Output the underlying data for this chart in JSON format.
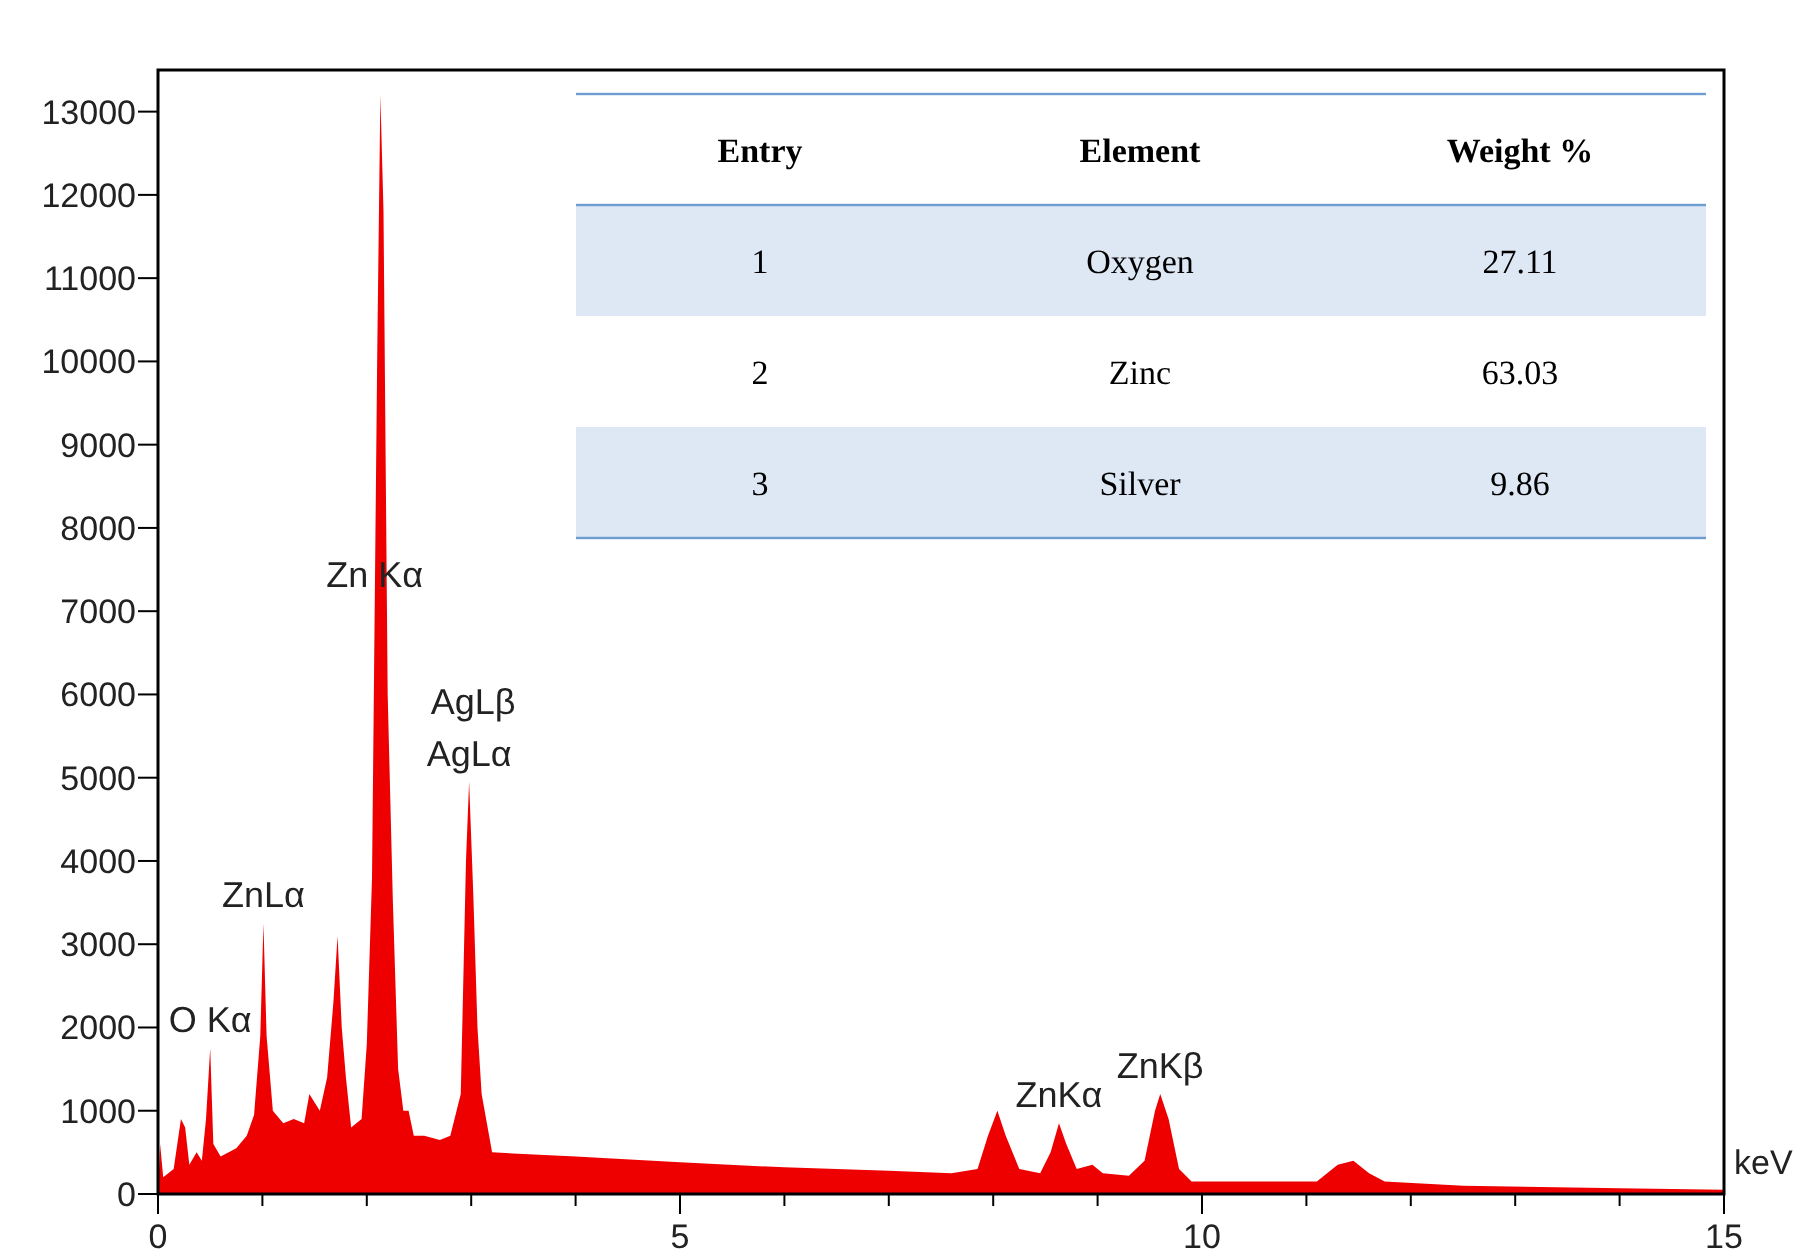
{
  "chart_data": {
    "type": "area",
    "xlabel": "keV",
    "color": "#ee0000",
    "xlim": [
      0,
      15
    ],
    "ylim": [
      0,
      13500
    ],
    "xticks": [
      0,
      {
        "value": 1,
        "label": null
      },
      {
        "value": 2,
        "label": null
      },
      {
        "value": 3,
        "label": null
      },
      {
        "value": 4,
        "label": null
      },
      5,
      {
        "value": 6,
        "label": null
      },
      {
        "value": 7,
        "label": null
      },
      {
        "value": 8,
        "label": null
      },
      {
        "value": 9,
        "label": null
      },
      10,
      {
        "value": 11,
        "label": null
      },
      {
        "value": 12,
        "label": null
      },
      {
        "value": 13,
        "label": null
      },
      {
        "value": 14,
        "label": null
      },
      15
    ],
    "yticks": [
      0,
      1000,
      2000,
      3000,
      4000,
      5000,
      6000,
      7000,
      8000,
      9000,
      10000,
      11000,
      12000,
      13000
    ],
    "x": [
      0,
      0.02,
      0.05,
      0.15,
      0.22,
      0.26,
      0.3,
      0.37,
      0.42,
      0.46,
      0.5,
      0.53,
      0.6,
      0.75,
      0.85,
      0.92,
      0.98,
      1.01,
      1.04,
      1.1,
      1.2,
      1.3,
      1.4,
      1.45,
      1.5,
      1.55,
      1.62,
      1.68,
      1.72,
      1.76,
      1.8,
      1.85,
      1.95,
      2.0,
      2.05,
      2.1,
      2.13,
      2.16,
      2.2,
      2.25,
      2.3,
      2.35,
      2.4,
      2.45,
      2.55,
      2.7,
      2.8,
      2.9,
      2.95,
      2.98,
      3.02,
      3.06,
      3.1,
      3.2,
      3.5,
      4,
      5,
      6,
      7,
      7.6,
      7.85,
      7.95,
      8.04,
      8.12,
      8.25,
      8.45,
      8.55,
      8.63,
      8.7,
      8.8,
      8.95,
      9.05,
      9.3,
      9.45,
      9.55,
      9.6,
      9.68,
      9.78,
      9.9,
      10.5,
      11.1,
      11.3,
      11.45,
      11.6,
      11.75,
      12.5,
      14,
      15
    ],
    "values": [
      0,
      600,
      200,
      300,
      900,
      800,
      350,
      500,
      400,
      900,
      1750,
      600,
      450,
      550,
      700,
      950,
      1900,
      3250,
      1900,
      1000,
      850,
      900,
      850,
      1200,
      1100,
      1000,
      1400,
      2300,
      3100,
      2000,
      1400,
      800,
      900,
      1800,
      3800,
      10100,
      13200,
      11800,
      6000,
      3500,
      1500,
      1000,
      1000,
      700,
      700,
      650,
      700,
      1200,
      4000,
      4950,
      3600,
      2000,
      1200,
      500,
      480,
      450,
      380,
      320,
      280,
      250,
      300,
      700,
      1000,
      700,
      300,
      250,
      500,
      850,
      600,
      300,
      350,
      250,
      220,
      400,
      1000,
      1200,
      900,
      300,
      150,
      150,
      150,
      350,
      400,
      250,
      150,
      100,
      70,
      50
    ],
    "annotations": [
      {
        "text": "O Kα",
        "x": 0.5,
        "y": 1750
      },
      {
        "text": "ZnLα",
        "x": 1.01,
        "y": 3250
      },
      {
        "text": "Zn Kα",
        "x": 2.076,
        "y": 7100
      },
      "AgLβ",
      {
        "text": "AgLα",
        "x": 2.98,
        "y": 4950
      },
      {
        "text": "ZnKα",
        "x": 8.63,
        "y": 850
      },
      {
        "text": "ZnKβ",
        "x": 9.6,
        "y": 1200
      },
      "Entry",
      "Element",
      "Weight %",
      "1",
      "Oxygen",
      "27.11",
      "2",
      "Zinc",
      "63.03",
      "3",
      "Silver",
      "9.86"
    ]
  }
}
